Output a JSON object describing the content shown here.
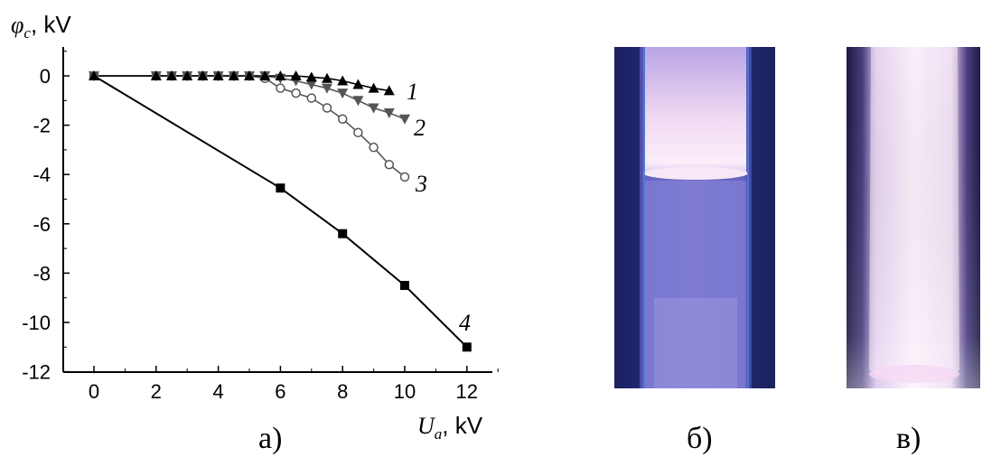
{
  "chart_data": {
    "type": "line",
    "ylabel": {
      "symbol": "φ",
      "sub": "c",
      "unit": ", kV"
    },
    "xlabel": {
      "symbol": "U",
      "sub": "a",
      "unit": ", kV"
    },
    "xlim": [
      -0.8,
      13
    ],
    "ylim": [
      -12,
      1
    ],
    "xticks": [
      0,
      2,
      4,
      6,
      8,
      10,
      12
    ],
    "yticks": [
      0,
      -2,
      -4,
      -6,
      -8,
      -10,
      -12
    ],
    "grid": false,
    "legend": "curve numbers at line ends",
    "series": [
      {
        "label": "1",
        "marker": "triangle-up",
        "color": "#000000",
        "x": [
          0,
          2,
          2.5,
          3,
          3.5,
          4,
          4.5,
          5,
          5.5,
          6,
          6.5,
          7,
          7.5,
          8,
          8.5,
          9,
          9.5
        ],
        "y": [
          0,
          0,
          0,
          0,
          0,
          0,
          0,
          0,
          0,
          0,
          0,
          -0.05,
          -0.1,
          -0.2,
          -0.35,
          -0.5,
          -0.6
        ]
      },
      {
        "label": "2",
        "marker": "triangle-down",
        "color": "#555555",
        "x": [
          0,
          2,
          2.5,
          3,
          3.5,
          4,
          4.5,
          5,
          5.5,
          6,
          6.5,
          7,
          7.5,
          8,
          8.5,
          9,
          9.5,
          10
        ],
        "y": [
          0,
          0,
          0,
          0,
          0,
          0,
          0,
          0,
          0,
          -0.1,
          -0.2,
          -0.35,
          -0.5,
          -0.7,
          -1.0,
          -1.3,
          -1.5,
          -1.75
        ]
      },
      {
        "label": "3",
        "marker": "circle-open",
        "color": "#555555",
        "x": [
          0,
          2,
          2.5,
          3,
          3.5,
          4,
          4.5,
          5,
          5.5,
          6,
          6.5,
          7,
          7.5,
          8,
          8.5,
          9,
          9.5,
          10
        ],
        "y": [
          0,
          0,
          0,
          0,
          0,
          0,
          0,
          0,
          -0.1,
          -0.5,
          -0.7,
          -0.9,
          -1.3,
          -1.75,
          -2.3,
          -2.9,
          -3.6,
          -4.1
        ]
      },
      {
        "label": "4",
        "marker": "square",
        "color": "#000000",
        "x": [
          0,
          6,
          8,
          10,
          12
        ],
        "y": [
          0,
          -4.55,
          -6.4,
          -8.5,
          -11.0
        ]
      }
    ]
  },
  "panels": {
    "a": "а)",
    "b": "б)",
    "c": "в)"
  },
  "colors": {
    "photo_dark": "#1a1f5c",
    "photo_glow": "#f3e6f7",
    "photo_mid": "#5b58c8"
  }
}
